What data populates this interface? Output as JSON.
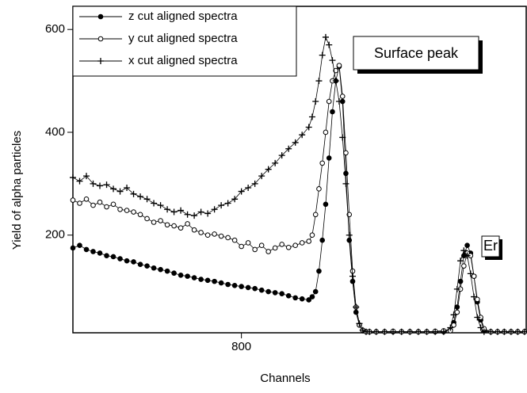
{
  "chart_data": {
    "type": "line",
    "x_label": "Channels",
    "y_label": "Yield of alpha particles",
    "annotations": [
      "Surface peak",
      "Er"
    ],
    "x": [
      700,
      704,
      708,
      712,
      716,
      720,
      724,
      728,
      732,
      736,
      740,
      744,
      748,
      752,
      756,
      760,
      764,
      768,
      772,
      776,
      780,
      784,
      788,
      792,
      796,
      800,
      804,
      808,
      812,
      816,
      820,
      824,
      828,
      832,
      836,
      840,
      842,
      844,
      846,
      848,
      850,
      852,
      854,
      856,
      858,
      860,
      862,
      864,
      866,
      868,
      870,
      872,
      874,
      876,
      880,
      885,
      890,
      895,
      900,
      905,
      910,
      915,
      920,
      924,
      926,
      928,
      930,
      932,
      934,
      936,
      938,
      940,
      942,
      944,
      948,
      952,
      956,
      960,
      964,
      968
    ],
    "series": [
      {
        "name": "z cut aligned spectra",
        "color": "#000000",
        "marker": "filled-circle",
        "values": [
          175,
          180,
          172,
          168,
          165,
          160,
          158,
          154,
          150,
          148,
          143,
          140,
          136,
          133,
          130,
          126,
          122,
          120,
          117,
          114,
          112,
          110,
          107,
          104,
          102,
          100,
          98,
          96,
          93,
          90,
          88,
          86,
          82,
          78,
          76,
          74,
          80,
          90,
          130,
          190,
          260,
          350,
          440,
          500,
          528,
          460,
          320,
          190,
          110,
          50,
          25,
          15,
          12,
          12,
          12,
          12,
          12,
          12,
          12,
          12,
          12,
          12,
          12,
          15,
          30,
          60,
          110,
          160,
          180,
          165,
          120,
          70,
          35,
          15,
          12,
          12,
          12,
          12,
          12,
          12
        ]
      },
      {
        "name": "y cut aligned spectra",
        "color": "#000000",
        "marker": "open-circle",
        "values": [
          268,
          262,
          270,
          258,
          264,
          255,
          260,
          250,
          248,
          245,
          240,
          232,
          225,
          228,
          220,
          218,
          214,
          222,
          210,
          205,
          200,
          202,
          198,
          195,
          190,
          178,
          185,
          172,
          180,
          168,
          175,
          182,
          176,
          180,
          185,
          188,
          200,
          240,
          290,
          340,
          400,
          460,
          500,
          520,
          530,
          470,
          360,
          240,
          130,
          60,
          25,
          15,
          12,
          12,
          12,
          12,
          13,
          12,
          12,
          12,
          12,
          13,
          14,
          14,
          25,
          50,
          95,
          140,
          165,
          160,
          120,
          75,
          40,
          18,
          12,
          12,
          12,
          12,
          12,
          12
        ]
      },
      {
        "name": "x cut aligned spectra",
        "color": "#000000",
        "marker": "plus",
        "values": [
          312,
          305,
          315,
          300,
          296,
          298,
          290,
          285,
          292,
          280,
          275,
          270,
          262,
          258,
          250,
          245,
          248,
          240,
          238,
          245,
          242,
          250,
          258,
          262,
          270,
          285,
          292,
          300,
          315,
          328,
          340,
          355,
          368,
          380,
          395,
          410,
          430,
          460,
          500,
          550,
          585,
          570,
          540,
          500,
          460,
          390,
          300,
          200,
          120,
          60,
          28,
          15,
          12,
          12,
          12,
          12,
          12,
          12,
          12,
          12,
          12,
          12,
          12,
          20,
          45,
          95,
          150,
          170,
          160,
          125,
          80,
          40,
          20,
          12,
          12,
          12,
          12,
          12,
          12,
          12
        ]
      }
    ],
    "xlim": [
      700,
      969
    ],
    "ylim": [
      10,
      645
    ],
    "xticks": [
      800
    ],
    "yticks": [
      200,
      400,
      600
    ],
    "legend": "upper-left"
  }
}
